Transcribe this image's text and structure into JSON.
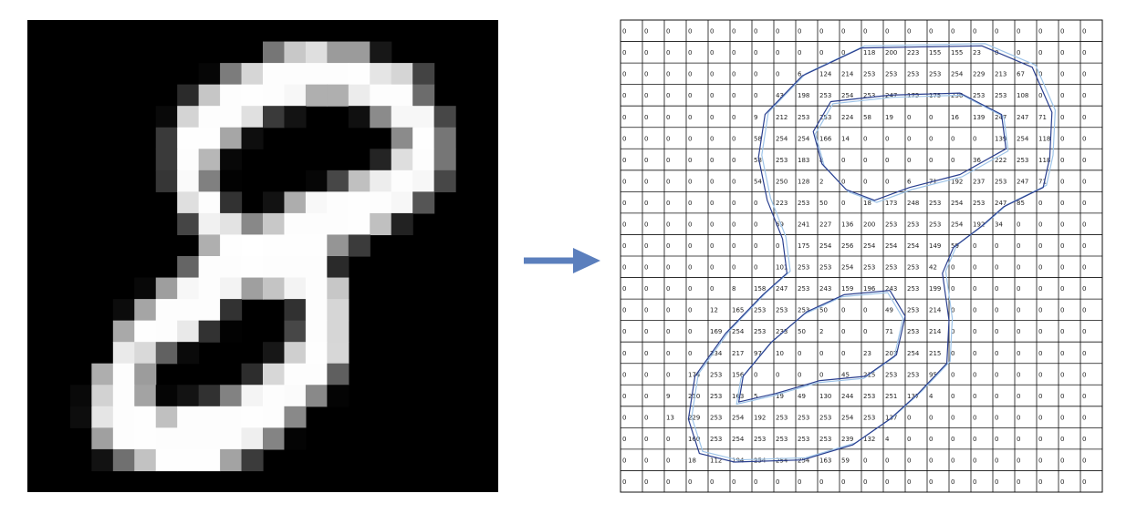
{
  "grid": {
    "rows": [
      [
        "0",
        "0",
        "0",
        "0",
        "0",
        "0",
        "0",
        "0",
        "0",
        "0",
        "0",
        "0",
        "0",
        "0",
        "0",
        "0",
        "0",
        "0",
        "0",
        "0",
        "0",
        "0"
      ],
      [
        "0",
        "0",
        "0",
        "0",
        "0",
        "0",
        "0",
        "0",
        "0",
        "0",
        "0",
        "118",
        "200",
        "223",
        "155",
        "155",
        "23",
        "0",
        "0",
        "0",
        "0",
        "0"
      ],
      [
        "0",
        "0",
        "0",
        "0",
        "0",
        "0",
        "0",
        "0",
        "6",
        "124",
        "214",
        "253",
        "253",
        "253",
        "253",
        "254",
        "229",
        "213",
        "67",
        "0",
        "0",
        "0"
      ],
      [
        "0",
        "0",
        "0",
        "0",
        "0",
        "0",
        "0",
        "43",
        "198",
        "253",
        "254",
        "253",
        "247",
        "175",
        "175",
        "236",
        "253",
        "253",
        "108",
        "0",
        "0",
        "0"
      ],
      [
        "0",
        "0",
        "0",
        "0",
        "0",
        "0",
        "9",
        "212",
        "253",
        "253",
        "224",
        "58",
        "19",
        "0",
        "0",
        "16",
        "139",
        "247",
        "247",
        "71",
        "0",
        "0"
      ],
      [
        "0",
        "0",
        "0",
        "0",
        "0",
        "0",
        "58",
        "254",
        "254",
        "166",
        "14",
        "0",
        "0",
        "0",
        "0",
        "0",
        "0",
        "139",
        "254",
        "118",
        "0",
        "0"
      ],
      [
        "0",
        "0",
        "0",
        "0",
        "0",
        "0",
        "58",
        "253",
        "183",
        "8",
        "0",
        "0",
        "0",
        "0",
        "0",
        "0",
        "36",
        "222",
        "253",
        "118",
        "0",
        "0"
      ],
      [
        "0",
        "0",
        "0",
        "0",
        "0",
        "0",
        "54",
        "250",
        "128",
        "2",
        "0",
        "0",
        "0",
        "6",
        "71",
        "192",
        "237",
        "253",
        "247",
        "71",
        "0",
        "0"
      ],
      [
        "0",
        "0",
        "0",
        "0",
        "0",
        "0",
        "0",
        "223",
        "253",
        "50",
        "0",
        "18",
        "173",
        "248",
        "253",
        "254",
        "253",
        "247",
        "85",
        "0",
        "0",
        "0"
      ],
      [
        "0",
        "0",
        "0",
        "0",
        "0",
        "0",
        "0",
        "69",
        "241",
        "227",
        "136",
        "200",
        "253",
        "253",
        "253",
        "254",
        "192",
        "34",
        "0",
        "0",
        "0",
        "0"
      ],
      [
        "0",
        "0",
        "0",
        "0",
        "0",
        "0",
        "0",
        "0",
        "175",
        "254",
        "256",
        "254",
        "254",
        "254",
        "149",
        "59",
        "0",
        "0",
        "0",
        "0",
        "0",
        "0"
      ],
      [
        "0",
        "0",
        "0",
        "0",
        "0",
        "0",
        "0",
        "101",
        "253",
        "253",
        "254",
        "253",
        "253",
        "253",
        "42",
        "0",
        "0",
        "0",
        "0",
        "0",
        "0",
        "0"
      ],
      [
        "0",
        "0",
        "0",
        "0",
        "0",
        "8",
        "158",
        "247",
        "253",
        "243",
        "159",
        "196",
        "243",
        "253",
        "199",
        "0",
        "0",
        "0",
        "0",
        "0",
        "0",
        "0"
      ],
      [
        "0",
        "0",
        "0",
        "0",
        "12",
        "165",
        "253",
        "253",
        "253",
        "50",
        "0",
        "0",
        "49",
        "253",
        "214",
        "0",
        "0",
        "0",
        "0",
        "0",
        "0",
        "0"
      ],
      [
        "0",
        "0",
        "0",
        "0",
        "169",
        "254",
        "253",
        "233",
        "50",
        "2",
        "0",
        "0",
        "71",
        "253",
        "214",
        "0",
        "0",
        "0",
        "0",
        "0",
        "0",
        "0"
      ],
      [
        "0",
        "0",
        "0",
        "0",
        "234",
        "217",
        "97",
        "10",
        "0",
        "0",
        "0",
        "23",
        "207",
        "254",
        "215",
        "0",
        "0",
        "0",
        "0",
        "0",
        "0",
        "0"
      ],
      [
        "0",
        "0",
        "0",
        "174",
        "253",
        "156",
        "0",
        "0",
        "0",
        "0",
        "45",
        "215",
        "253",
        "253",
        "95",
        "0",
        "0",
        "0",
        "0",
        "0",
        "0",
        "0"
      ],
      [
        "0",
        "0",
        "9",
        "210",
        "253",
        "163",
        "5",
        "19",
        "49",
        "130",
        "244",
        "253",
        "251",
        "137",
        "4",
        "0",
        "0",
        "0",
        "0",
        "0",
        "0",
        "0"
      ],
      [
        "0",
        "0",
        "13",
        "229",
        "253",
        "254",
        "192",
        "253",
        "253",
        "253",
        "254",
        "253",
        "137",
        "0",
        "0",
        "0",
        "0",
        "0",
        "0",
        "0",
        "0",
        "0"
      ],
      [
        "0",
        "0",
        "0",
        "160",
        "253",
        "254",
        "253",
        "253",
        "253",
        "253",
        "239",
        "132",
        "4",
        "0",
        "0",
        "0",
        "0",
        "0",
        "0",
        "0",
        "0",
        "0"
      ],
      [
        "0",
        "0",
        "0",
        "18",
        "112",
        "194",
        "254",
        "254",
        "254",
        "163",
        "59",
        "0",
        "0",
        "0",
        "0",
        "0",
        "0",
        "0",
        "0",
        "0",
        "0",
        "0"
      ],
      [
        "0",
        "0",
        "0",
        "0",
        "0",
        "0",
        "0",
        "0",
        "0",
        "0",
        "0",
        "0",
        "0",
        "0",
        "0",
        "0",
        "0",
        "0",
        "0",
        "0",
        "0",
        "0"
      ]
    ]
  },
  "colors": {
    "arrow": "#5b7fbd",
    "contour_dark": "#2a3f8f",
    "contour_light": "#9ec4e8",
    "grid_line": "#111111",
    "image_bg": "#000000"
  }
}
